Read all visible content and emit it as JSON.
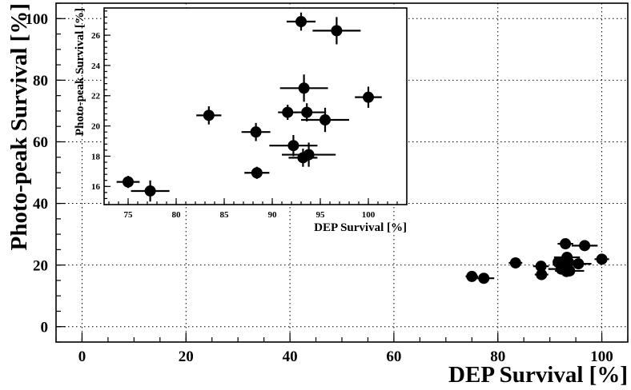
{
  "chart_data": [
    {
      "type": "scatter",
      "title": "",
      "xlabel": "DEP Survival [%]",
      "ylabel": "Photo-peak Survival [%]",
      "xlim": [
        -5,
        105
      ],
      "ylim": [
        -5,
        105
      ],
      "xticks": [
        0,
        20,
        40,
        60,
        80,
        100
      ],
      "yticks": [
        0,
        20,
        40,
        60,
        80,
        100
      ],
      "grid": true,
      "points": [
        {
          "x": 75.0,
          "y": 16.3,
          "xerr": 1.2,
          "yerr": 0.4
        },
        {
          "x": 77.3,
          "y": 15.7,
          "xerr": 2.0,
          "yerr": 0.7
        },
        {
          "x": 83.4,
          "y": 20.7,
          "xerr": 1.3,
          "yerr": 0.6
        },
        {
          "x": 88.3,
          "y": 19.6,
          "xerr": 1.5,
          "yerr": 0.6
        },
        {
          "x": 88.4,
          "y": 16.9,
          "xerr": 1.3,
          "yerr": 0.4
        },
        {
          "x": 91.6,
          "y": 20.9,
          "xerr": 1.0,
          "yerr": 0.5
        },
        {
          "x": 92.2,
          "y": 18.7,
          "xerr": 2.5,
          "yerr": 0.7
        },
        {
          "x": 93.0,
          "y": 26.9,
          "xerr": 1.5,
          "yerr": 0.6
        },
        {
          "x": 93.2,
          "y": 17.9,
          "xerr": 1.5,
          "yerr": 0.6
        },
        {
          "x": 93.3,
          "y": 22.5,
          "xerr": 2.5,
          "yerr": 0.9
        },
        {
          "x": 93.6,
          "y": 20.9,
          "xerr": 2.0,
          "yerr": 0.6
        },
        {
          "x": 93.8,
          "y": 18.1,
          "xerr": 2.8,
          "yerr": 0.8
        },
        {
          "x": 95.5,
          "y": 20.4,
          "xerr": 2.5,
          "yerr": 0.8
        },
        {
          "x": 96.7,
          "y": 26.3,
          "xerr": 2.5,
          "yerr": 0.9
        },
        {
          "x": 100.0,
          "y": 21.9,
          "xerr": 1.4,
          "yerr": 0.7
        }
      ]
    },
    {
      "type": "scatter",
      "title": "",
      "xlabel": "DEP Survival [%]",
      "ylabel": "Photo-peak Survival [%]",
      "xlim": [
        72.5,
        104
      ],
      "ylim": [
        14.8,
        27.8
      ],
      "xticks": [
        75,
        80,
        85,
        90,
        95,
        100
      ],
      "yticks": [
        16,
        18,
        20,
        22,
        24,
        26
      ],
      "grid": false,
      "points": [
        {
          "x": 75.0,
          "y": 16.3,
          "xerr": 1.2,
          "yerr": 0.4
        },
        {
          "x": 77.3,
          "y": 15.7,
          "xerr": 2.0,
          "yerr": 0.7
        },
        {
          "x": 83.4,
          "y": 20.7,
          "xerr": 1.3,
          "yerr": 0.6
        },
        {
          "x": 88.3,
          "y": 19.6,
          "xerr": 1.5,
          "yerr": 0.6
        },
        {
          "x": 88.4,
          "y": 16.9,
          "xerr": 1.3,
          "yerr": 0.4
        },
        {
          "x": 91.6,
          "y": 20.9,
          "xerr": 1.0,
          "yerr": 0.5
        },
        {
          "x": 92.2,
          "y": 18.7,
          "xerr": 2.5,
          "yerr": 0.7
        },
        {
          "x": 93.0,
          "y": 26.9,
          "xerr": 1.5,
          "yerr": 0.6
        },
        {
          "x": 93.2,
          "y": 17.9,
          "xerr": 1.5,
          "yerr": 0.6
        },
        {
          "x": 93.3,
          "y": 22.5,
          "xerr": 2.5,
          "yerr": 0.9
        },
        {
          "x": 93.6,
          "y": 20.9,
          "xerr": 2.0,
          "yerr": 0.6
        },
        {
          "x": 93.8,
          "y": 18.1,
          "xerr": 2.8,
          "yerr": 0.8
        },
        {
          "x": 95.5,
          "y": 20.4,
          "xerr": 2.5,
          "yerr": 0.8
        },
        {
          "x": 96.7,
          "y": 26.3,
          "xerr": 2.5,
          "yerr": 0.9
        },
        {
          "x": 100.0,
          "y": 21.9,
          "xerr": 1.4,
          "yerr": 0.7
        }
      ]
    }
  ]
}
